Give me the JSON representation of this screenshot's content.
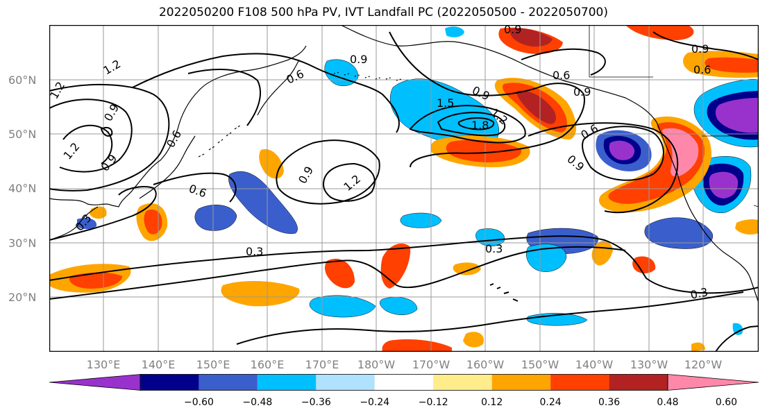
{
  "title": "2022050200 F108 500 hPa PV, IVT Landfall PC (2022050500 - 2022050700)",
  "lat_ticks": [
    "60°N",
    "50°N",
    "40°N",
    "30°N",
    "20°N"
  ],
  "lon_ticks": [
    "130°E",
    "140°E",
    "150°E",
    "160°E",
    "170°E",
    "180°W",
    "170°W",
    "160°W",
    "150°W",
    "140°W",
    "130°W",
    "120°W"
  ],
  "contour_labels": [
    "0.9",
    "0.9",
    "1.2",
    "1.2",
    "1.2",
    "0.6",
    "0.9",
    "1.5",
    "1.2",
    "1.8",
    "0.9",
    "0.6",
    "0.9",
    "0.6",
    "0.9",
    "1.2",
    "0.9",
    "0.6",
    "0.3",
    "0.3",
    "0.3",
    "0.3",
    "0.6",
    "0.9",
    "0.6",
    "0.9"
  ],
  "colorbar": {
    "tick_labels": [
      "−0.60",
      "−0.48",
      "−0.36",
      "−0.24",
      "−0.12",
      "0.12",
      "0.24",
      "0.36",
      "0.48",
      "0.60"
    ],
    "colors": [
      "#9932CC",
      "#00008B",
      "#3A5FCD",
      "#00BFFF",
      "#B0E2FF",
      "#FFFFFF",
      "#FFEC8B",
      "#FFA500",
      "#FF4000",
      "#B22222",
      "#FF88AA"
    ]
  },
  "colors": {
    "frame": "#000000",
    "grid": "#999999",
    "tick_text": "#808080"
  }
}
